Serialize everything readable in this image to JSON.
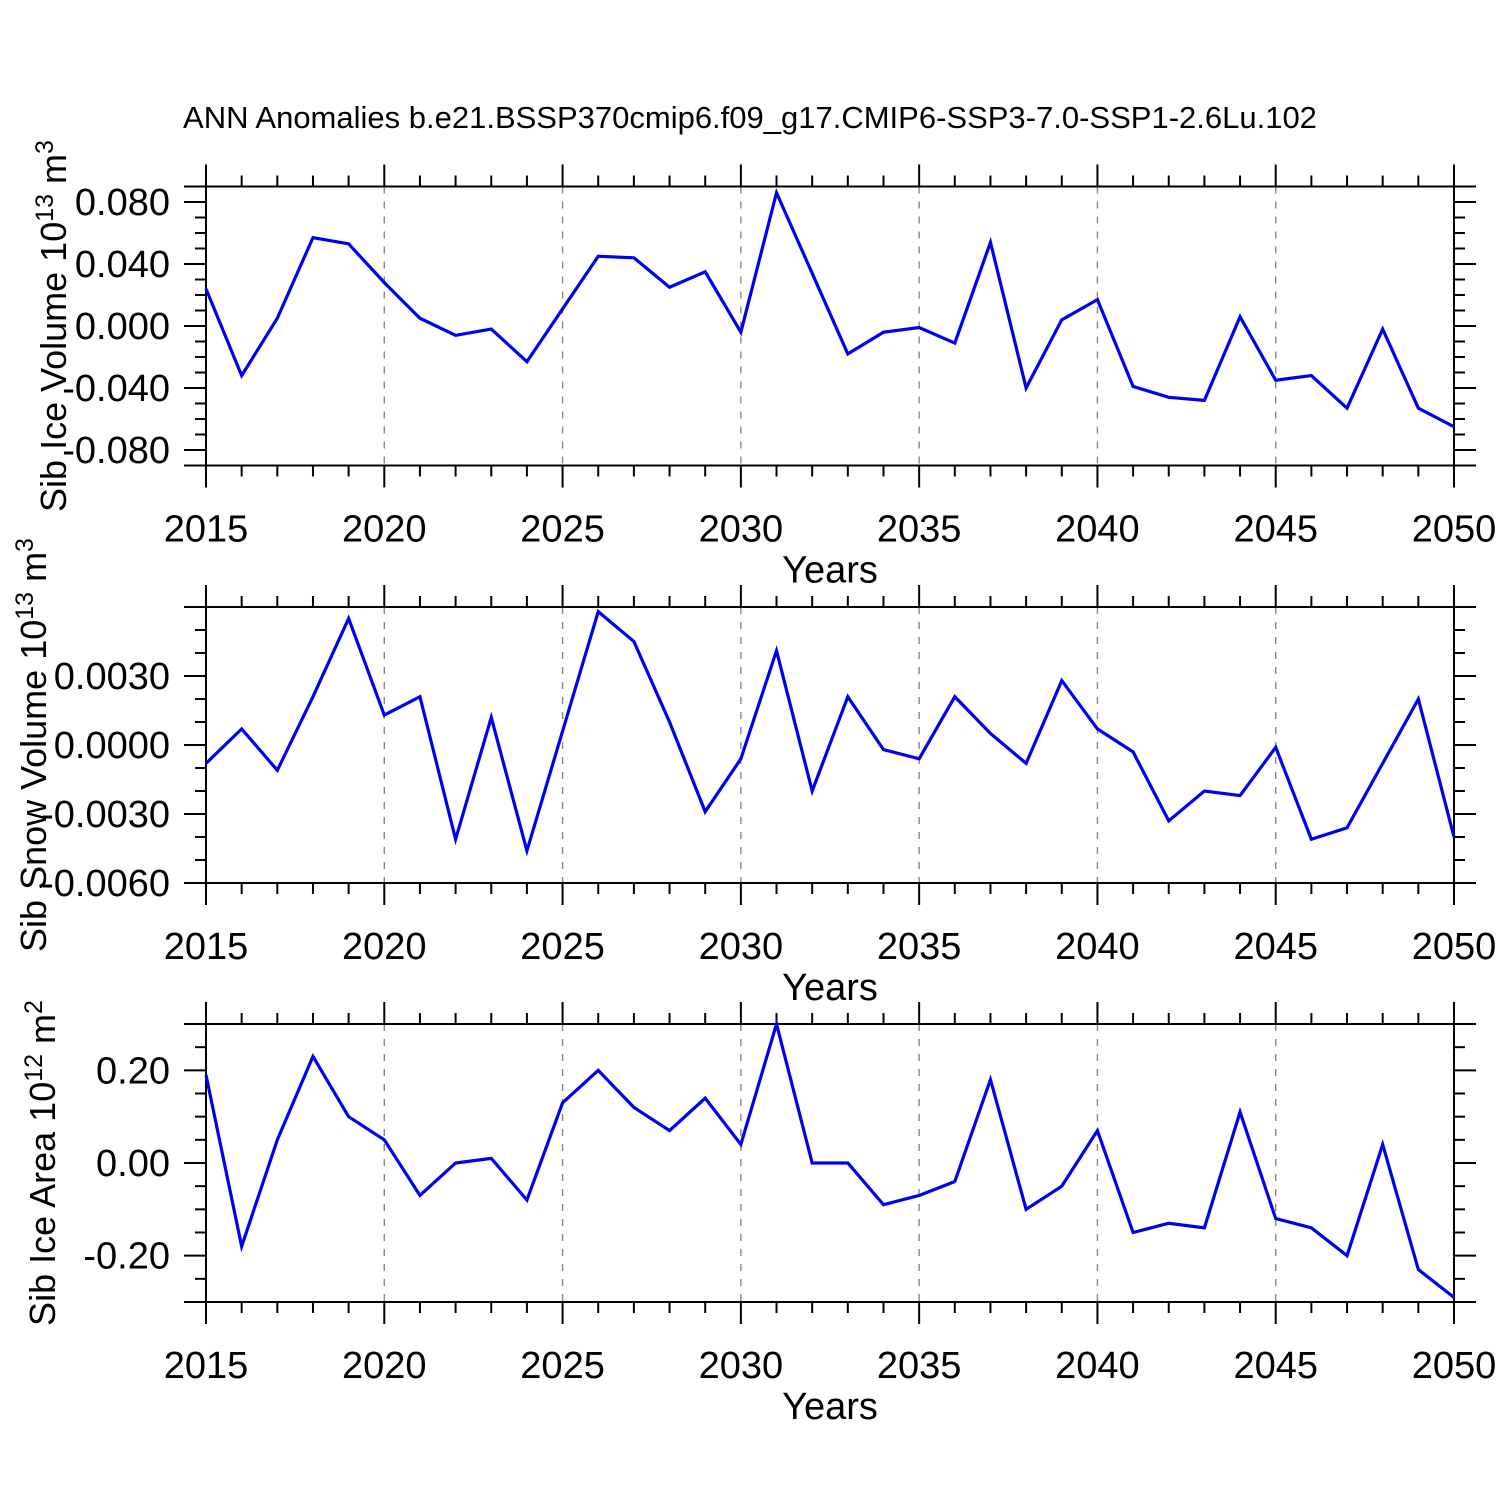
{
  "page": {
    "title": "ANN Anomalies b.e21.BSSP370cmip6.f09_g17.CMIP6-SSP3-7.0-SSP1-2.6Lu.102"
  },
  "chart_data": [
    {
      "type": "line",
      "name": "sib-ice-volume",
      "ylabel": "Sib Ice Volume 10^13 m^3",
      "ylabel_parts": [
        {
          "t": "Sib Ice Volume 10"
        },
        {
          "t": "13",
          "sup": true
        },
        {
          "t": " m"
        },
        {
          "t": "3",
          "sup": true
        }
      ],
      "xlabel": "Years",
      "line_color": "#0000ee",
      "grid_color": "#888888",
      "ylim": [
        -0.09,
        0.09
      ],
      "y_major_step": 0.04,
      "y_minor_step": 0.01,
      "yticks": [
        {
          "v": 0.08,
          "label": "0.080"
        },
        {
          "v": 0.04,
          "label": "0.040"
        },
        {
          "v": 0.0,
          "label": "0.000"
        },
        {
          "v": -0.04,
          "label": "-0.040"
        },
        {
          "v": -0.08,
          "label": "-0.080"
        }
      ],
      "xlim": [
        2015,
        2050
      ],
      "x_minor_step": 1,
      "xticks": [
        {
          "v": 2015,
          "label": "2015"
        },
        {
          "v": 2020,
          "label": "2020"
        },
        {
          "v": 2025,
          "label": "2025"
        },
        {
          "v": 2030,
          "label": "2030"
        },
        {
          "v": 2035,
          "label": "2035"
        },
        {
          "v": 2040,
          "label": "2040"
        },
        {
          "v": 2045,
          "label": "2045"
        },
        {
          "v": 2050,
          "label": "2050"
        }
      ],
      "gridlines_x": [
        2020,
        2025,
        2030,
        2035,
        2040,
        2045
      ],
      "x": [
        2015,
        2016,
        2017,
        2018,
        2019,
        2020,
        2021,
        2022,
        2023,
        2024,
        2025,
        2026,
        2027,
        2028,
        2029,
        2030,
        2031,
        2032,
        2033,
        2034,
        2035,
        2036,
        2037,
        2038,
        2039,
        2040,
        2041,
        2042,
        2043,
        2044,
        2045,
        2046,
        2047,
        2048,
        2049,
        2050
      ],
      "values": [
        0.024,
        -0.032,
        0.005,
        0.057,
        0.053,
        0.028,
        0.005,
        -0.006,
        -0.002,
        -0.023,
        0.011,
        0.045,
        0.044,
        0.025,
        0.035,
        -0.004,
        0.086,
        0.034,
        -0.018,
        -0.004,
        -0.001,
        -0.011,
        0.054,
        -0.04,
        0.004,
        0.017,
        -0.039,
        -0.046,
        -0.048,
        0.006,
        -0.035,
        -0.032,
        -0.053,
        -0.002,
        -0.053,
        -0.065
      ]
    },
    {
      "type": "line",
      "name": "sib-snow-volume",
      "ylabel": "Sib Snow Volume 10^13 m^3",
      "ylabel_parts": [
        {
          "t": "Sib Snow Volume 10"
        },
        {
          "t": "13",
          "sup": true
        },
        {
          "t": " m"
        },
        {
          "t": "3",
          "sup": true
        }
      ],
      "xlabel": "Years",
      "line_color": "#0000ee",
      "grid_color": "#888888",
      "ylim": [
        -0.006,
        0.006
      ],
      "y_major_step": 0.003,
      "y_minor_step": 0.001,
      "yticks": [
        {
          "v": 0.003,
          "label": "0.0030"
        },
        {
          "v": 0.0,
          "label": "0.0000"
        },
        {
          "v": -0.003,
          "label": "-0.0030"
        },
        {
          "v": -0.006,
          "label": "-0.0060"
        }
      ],
      "xlim": [
        2015,
        2050
      ],
      "x_minor_step": 1,
      "xticks": [
        {
          "v": 2015,
          "label": "2015"
        },
        {
          "v": 2020,
          "label": "2020"
        },
        {
          "v": 2025,
          "label": "2025"
        },
        {
          "v": 2030,
          "label": "2030"
        },
        {
          "v": 2035,
          "label": "2035"
        },
        {
          "v": 2040,
          "label": "2040"
        },
        {
          "v": 2045,
          "label": "2045"
        },
        {
          "v": 2050,
          "label": "2050"
        }
      ],
      "gridlines_x": [
        2020,
        2025,
        2030,
        2035,
        2040,
        2045
      ],
      "x": [
        2015,
        2016,
        2017,
        2018,
        2019,
        2020,
        2021,
        2022,
        2023,
        2024,
        2025,
        2026,
        2027,
        2028,
        2029,
        2030,
        2031,
        2032,
        2033,
        2034,
        2035,
        2036,
        2037,
        2038,
        2039,
        2040,
        2041,
        2042,
        2043,
        2044,
        2045,
        2046,
        2047,
        2048,
        2049,
        2050
      ],
      "values": [
        -0.0008,
        0.0007,
        -0.0011,
        0.0021,
        0.0055,
        0.0013,
        0.0021,
        -0.0041,
        0.0012,
        -0.0046,
        0.0006,
        0.0058,
        0.0045,
        0.001,
        -0.0029,
        -0.0006,
        0.0041,
        -0.002,
        0.0021,
        -0.0002,
        -0.0006,
        0.0021,
        0.0005,
        -0.0008,
        0.0028,
        0.0007,
        -0.0003,
        -0.0033,
        -0.002,
        -0.0022,
        -0.0001,
        -0.0041,
        -0.0036,
        -0.0008,
        0.002,
        -0.004
      ]
    },
    {
      "type": "line",
      "name": "sib-ice-area",
      "ylabel": "Sib Ice Area 10^12 m^2",
      "ylabel_parts": [
        {
          "t": "Sib Ice Area 10"
        },
        {
          "t": "12",
          "sup": true
        },
        {
          "t": " m"
        },
        {
          "t": "2",
          "sup": true
        }
      ],
      "xlabel": "Years",
      "line_color": "#0000ee",
      "grid_color": "#888888",
      "ylim": [
        -0.3,
        0.3
      ],
      "y_major_step": 0.2,
      "y_minor_step": 0.05,
      "yticks": [
        {
          "v": 0.2,
          "label": "0.20"
        },
        {
          "v": 0.0,
          "label": "0.00"
        },
        {
          "v": -0.2,
          "label": "-0.20"
        }
      ],
      "xlim": [
        2015,
        2050
      ],
      "x_minor_step": 1,
      "xticks": [
        {
          "v": 2015,
          "label": "2015"
        },
        {
          "v": 2020,
          "label": "2020"
        },
        {
          "v": 2025,
          "label": "2025"
        },
        {
          "v": 2030,
          "label": "2030"
        },
        {
          "v": 2035,
          "label": "2035"
        },
        {
          "v": 2040,
          "label": "2040"
        },
        {
          "v": 2045,
          "label": "2045"
        },
        {
          "v": 2050,
          "label": "2050"
        }
      ],
      "gridlines_x": [
        2020,
        2025,
        2030,
        2035,
        2040,
        2045
      ],
      "x": [
        2015,
        2016,
        2017,
        2018,
        2019,
        2020,
        2021,
        2022,
        2023,
        2024,
        2025,
        2026,
        2027,
        2028,
        2029,
        2030,
        2031,
        2032,
        2033,
        2034,
        2035,
        2036,
        2037,
        2038,
        2039,
        2040,
        2041,
        2042,
        2043,
        2044,
        2045,
        2046,
        2047,
        2048,
        2049,
        2050
      ],
      "values": [
        0.19,
        -0.18,
        0.05,
        0.23,
        0.1,
        0.05,
        -0.07,
        0.0,
        0.01,
        -0.08,
        0.13,
        0.2,
        0.12,
        0.07,
        0.14,
        0.04,
        0.3,
        0.0,
        0.0,
        -0.09,
        -0.07,
        -0.04,
        0.18,
        -0.1,
        -0.05,
        0.07,
        -0.15,
        -0.13,
        -0.14,
        0.11,
        -0.12,
        -0.14,
        -0.2,
        0.04,
        -0.23,
        -0.29
      ]
    }
  ]
}
